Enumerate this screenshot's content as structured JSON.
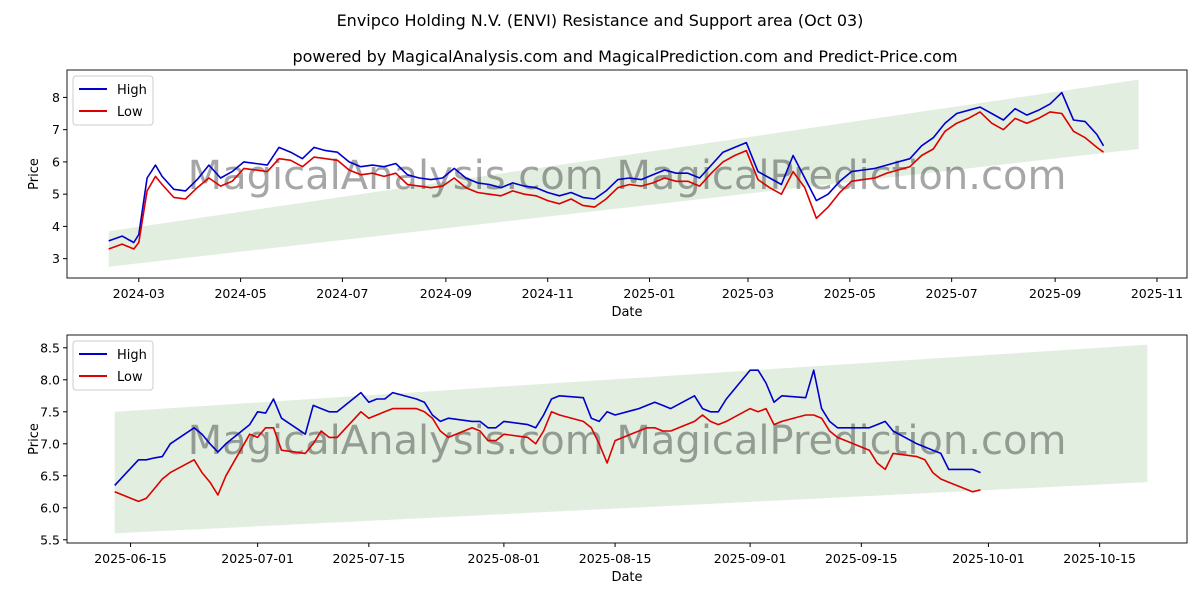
{
  "title": "Envipco Holding N.V. (ENVI) Resistance and Support area (Oct 03)",
  "subtitle": "powered by MagicalAnalysis.com and MagicalPrediction.com and Predict-Price.com",
  "watermark": "MagicalAnalysis.com    MagicalPrediction.com",
  "colors": {
    "high": "#0000cc",
    "low": "#dd0000",
    "band": "#d8ead5"
  },
  "chart_data": [
    {
      "type": "line",
      "xlabel": "Date",
      "ylabel": "Price",
      "grid": false,
      "legend": "top-left",
      "xlim": [
        "2024-01-18",
        "2025-11-19"
      ],
      "ylim": [
        2.4,
        8.85
      ],
      "xticks": [
        "2024-03-01",
        "2024-05-01",
        "2024-07-01",
        "2024-09-01",
        "2024-11-01",
        "2025-01-01",
        "2025-03-01",
        "2025-05-01",
        "2025-07-01",
        "2025-09-01",
        "2025-11-01"
      ],
      "xtick_labels": [
        "2024-03",
        "2024-05",
        "2024-07",
        "2024-09",
        "2024-11",
        "2025-01",
        "2025-03",
        "2025-05",
        "2025-07",
        "2025-09",
        "2025-11"
      ],
      "yticks": [
        3,
        4,
        5,
        6,
        7,
        8
      ],
      "band": {
        "x": [
          "2024-02-12",
          "2025-10-21"
        ],
        "lower": [
          2.75,
          6.4
        ],
        "upper": [
          3.85,
          8.55
        ]
      },
      "x": [
        "2024-02-12",
        "2024-02-20",
        "2024-02-27",
        "2024-03-01",
        "2024-03-06",
        "2024-03-11",
        "2024-03-15",
        "2024-03-22",
        "2024-03-29",
        "2024-04-05",
        "2024-04-12",
        "2024-04-19",
        "2024-04-26",
        "2024-05-03",
        "2024-05-10",
        "2024-05-17",
        "2024-05-24",
        "2024-05-31",
        "2024-06-07",
        "2024-06-14",
        "2024-06-21",
        "2024-06-28",
        "2024-07-05",
        "2024-07-12",
        "2024-07-19",
        "2024-07-26",
        "2024-08-02",
        "2024-08-09",
        "2024-08-16",
        "2024-08-23",
        "2024-08-30",
        "2024-09-06",
        "2024-09-13",
        "2024-09-20",
        "2024-09-27",
        "2024-10-04",
        "2024-10-11",
        "2024-10-18",
        "2024-10-25",
        "2024-11-01",
        "2024-11-08",
        "2024-11-15",
        "2024-11-22",
        "2024-11-29",
        "2024-12-06",
        "2024-12-13",
        "2024-12-20",
        "2024-12-27",
        "2025-01-03",
        "2025-01-10",
        "2025-01-17",
        "2025-01-24",
        "2025-01-31",
        "2025-02-07",
        "2025-02-14",
        "2025-02-21",
        "2025-02-28",
        "2025-03-07",
        "2025-03-14",
        "2025-03-21",
        "2025-03-28",
        "2025-04-04",
        "2025-04-11",
        "2025-04-18",
        "2025-04-25",
        "2025-05-02",
        "2025-05-09",
        "2025-05-16",
        "2025-05-23",
        "2025-05-30",
        "2025-06-06",
        "2025-06-13",
        "2025-06-20",
        "2025-06-27",
        "2025-07-04",
        "2025-07-11",
        "2025-07-18",
        "2025-07-25",
        "2025-08-01",
        "2025-08-08",
        "2025-08-15",
        "2025-08-22",
        "2025-08-29",
        "2025-09-05",
        "2025-09-12",
        "2025-09-19",
        "2025-09-26",
        "2025-09-30"
      ],
      "series": [
        {
          "name": "High",
          "values": [
            3.55,
            3.7,
            3.5,
            3.75,
            5.5,
            5.9,
            5.55,
            5.15,
            5.1,
            5.45,
            5.9,
            5.5,
            5.7,
            6.0,
            5.95,
            5.9,
            6.45,
            6.3,
            6.1,
            6.45,
            6.35,
            6.3,
            6.0,
            5.85,
            5.9,
            5.85,
            5.95,
            5.6,
            5.5,
            5.45,
            5.5,
            5.8,
            5.5,
            5.35,
            5.3,
            5.2,
            5.35,
            5.25,
            5.2,
            5.05,
            4.95,
            5.05,
            4.9,
            4.85,
            5.1,
            5.45,
            5.5,
            5.45,
            5.6,
            5.75,
            5.65,
            5.65,
            5.5,
            5.9,
            6.3,
            6.45,
            6.6,
            5.7,
            5.5,
            5.3,
            6.2,
            5.5,
            4.8,
            5.0,
            5.4,
            5.7,
            5.75,
            5.8,
            5.9,
            6.0,
            6.1,
            6.5,
            6.75,
            7.2,
            7.5,
            7.6,
            7.7,
            7.5,
            7.3,
            7.65,
            7.45,
            7.6,
            7.8,
            8.15,
            7.3,
            7.25,
            6.85,
            6.5
          ]
        },
        {
          "name": "Low",
          "values": [
            3.3,
            3.45,
            3.3,
            3.5,
            5.1,
            5.55,
            5.3,
            4.9,
            4.85,
            5.2,
            5.5,
            5.25,
            5.4,
            5.8,
            5.75,
            5.7,
            6.1,
            6.05,
            5.85,
            6.15,
            6.1,
            6.05,
            5.75,
            5.6,
            5.65,
            5.55,
            5.65,
            5.3,
            5.25,
            5.2,
            5.25,
            5.5,
            5.2,
            5.05,
            5.0,
            4.95,
            5.1,
            5.0,
            4.95,
            4.8,
            4.7,
            4.85,
            4.65,
            4.6,
            4.85,
            5.2,
            5.3,
            5.25,
            5.35,
            5.5,
            5.4,
            5.4,
            5.25,
            5.65,
            6.0,
            6.2,
            6.35,
            5.45,
            5.2,
            5.0,
            5.7,
            5.2,
            4.25,
            4.6,
            5.05,
            5.4,
            5.45,
            5.5,
            5.65,
            5.75,
            5.85,
            6.2,
            6.4,
            6.95,
            7.2,
            7.35,
            7.55,
            7.2,
            7.0,
            7.35,
            7.2,
            7.35,
            7.55,
            7.5,
            6.95,
            6.75,
            6.45,
            6.3
          ]
        }
      ]
    },
    {
      "type": "line",
      "xlabel": "Date",
      "ylabel": "Price",
      "grid": false,
      "legend": "top-left",
      "xlim": [
        "2025-06-07",
        "2025-10-26"
      ],
      "ylim": [
        5.45,
        8.7
      ],
      "xticks": [
        "2025-06-15",
        "2025-07-01",
        "2025-07-15",
        "2025-08-01",
        "2025-08-15",
        "2025-09-01",
        "2025-09-15",
        "2025-10-01",
        "2025-10-15"
      ],
      "xtick_labels": [
        "2025-06-15",
        "2025-07-01",
        "2025-07-15",
        "2025-08-01",
        "2025-08-15",
        "2025-09-01",
        "2025-09-15",
        "2025-10-01",
        "2025-10-15"
      ],
      "yticks": [
        5.5,
        6.0,
        6.5,
        7.0,
        7.5,
        8.0,
        8.5
      ],
      "band": {
        "x": [
          "2025-06-13",
          "2025-10-21"
        ],
        "lower": [
          5.6,
          6.4
        ],
        "upper": [
          7.5,
          8.55
        ]
      },
      "x": [
        "2025-06-13",
        "2025-06-16",
        "2025-06-17",
        "2025-06-18",
        "2025-06-19",
        "2025-06-20",
        "2025-06-23",
        "2025-06-24",
        "2025-06-25",
        "2025-06-26",
        "2025-06-27",
        "2025-06-30",
        "2025-07-01",
        "2025-07-02",
        "2025-07-03",
        "2025-07-04",
        "2025-07-07",
        "2025-07-08",
        "2025-07-09",
        "2025-07-10",
        "2025-07-11",
        "2025-07-14",
        "2025-07-15",
        "2025-07-16",
        "2025-07-17",
        "2025-07-18",
        "2025-07-21",
        "2025-07-22",
        "2025-07-23",
        "2025-07-24",
        "2025-07-25",
        "2025-07-28",
        "2025-07-29",
        "2025-07-30",
        "2025-07-31",
        "2025-08-01",
        "2025-08-04",
        "2025-08-05",
        "2025-08-06",
        "2025-08-07",
        "2025-08-08",
        "2025-08-11",
        "2025-08-12",
        "2025-08-13",
        "2025-08-14",
        "2025-08-15",
        "2025-08-18",
        "2025-08-19",
        "2025-08-20",
        "2025-08-21",
        "2025-08-22",
        "2025-08-25",
        "2025-08-26",
        "2025-08-27",
        "2025-08-28",
        "2025-08-29",
        "2025-09-01",
        "2025-09-02",
        "2025-09-03",
        "2025-09-04",
        "2025-09-05",
        "2025-09-08",
        "2025-09-09",
        "2025-09-10",
        "2025-09-11",
        "2025-09-12",
        "2025-09-15",
        "2025-09-16",
        "2025-09-17",
        "2025-09-18",
        "2025-09-19",
        "2025-09-22",
        "2025-09-23",
        "2025-09-24",
        "2025-09-25",
        "2025-09-26",
        "2025-09-29",
        "2025-09-30"
      ],
      "series": [
        {
          "name": "High",
          "values": [
            6.35,
            6.75,
            6.75,
            6.78,
            6.8,
            7.0,
            7.25,
            7.15,
            7.0,
            6.87,
            7.0,
            7.3,
            7.5,
            7.48,
            7.7,
            7.4,
            7.15,
            7.6,
            7.55,
            7.5,
            7.5,
            7.8,
            7.65,
            7.7,
            7.7,
            7.8,
            7.7,
            7.65,
            7.45,
            7.35,
            7.4,
            7.35,
            7.35,
            7.25,
            7.25,
            7.35,
            7.3,
            7.25,
            7.45,
            7.7,
            7.75,
            7.72,
            7.4,
            7.35,
            7.5,
            7.45,
            7.55,
            7.6,
            7.65,
            7.6,
            7.55,
            7.75,
            7.55,
            7.5,
            7.5,
            7.7,
            8.15,
            8.15,
            7.95,
            7.65,
            7.75,
            7.72,
            8.15,
            7.55,
            7.35,
            7.25,
            7.25,
            7.25,
            7.3,
            7.35,
            7.2,
            7.0,
            6.95,
            6.9,
            6.85,
            6.6,
            6.6,
            6.55
          ]
        },
        {
          "name": "Low",
          "values": [
            6.25,
            6.1,
            6.15,
            6.3,
            6.45,
            6.55,
            6.75,
            6.55,
            6.4,
            6.2,
            6.5,
            7.15,
            7.1,
            7.25,
            7.25,
            6.9,
            6.85,
            7.0,
            7.2,
            7.1,
            7.1,
            7.5,
            7.4,
            7.45,
            7.5,
            7.55,
            7.55,
            7.5,
            7.4,
            7.2,
            7.1,
            7.25,
            7.2,
            7.05,
            7.05,
            7.15,
            7.1,
            7.0,
            7.2,
            7.5,
            7.45,
            7.35,
            7.25,
            7.0,
            6.7,
            7.05,
            7.2,
            7.25,
            7.25,
            7.2,
            7.2,
            7.35,
            7.45,
            7.35,
            7.3,
            7.35,
            7.55,
            7.5,
            7.55,
            7.3,
            7.35,
            7.45,
            7.45,
            7.4,
            7.2,
            7.1,
            6.95,
            6.9,
            6.7,
            6.6,
            6.85,
            6.8,
            6.75,
            6.55,
            6.45,
            6.4,
            6.25,
            6.28
          ]
        }
      ]
    }
  ]
}
